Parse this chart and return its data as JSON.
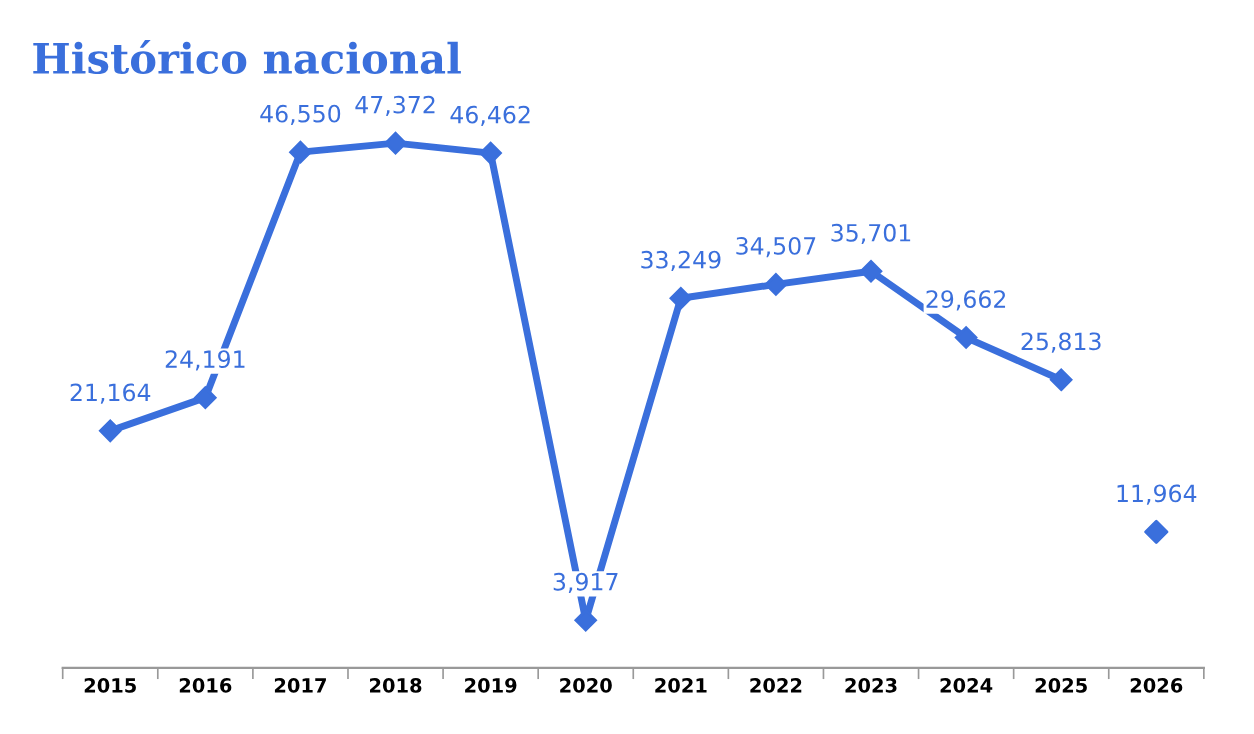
{
  "chart_data": {
    "type": "line",
    "title": "Histórico nacional",
    "categories": [
      "2015",
      "2016",
      "2017",
      "2018",
      "2019",
      "2020",
      "2021",
      "2022",
      "2023",
      "2024",
      "2025",
      "2026"
    ],
    "series": [
      {
        "color": "#3a6fdc",
        "values": [
          21164,
          24191,
          46550,
          47372,
          46462,
          3917,
          33249,
          34507,
          35701,
          29662,
          25813,
          null
        ],
        "value_labels": [
          "21,164",
          "24,191",
          "46,550",
          "47,372",
          "46,462",
          "3,917",
          "33,249",
          "34,507",
          "35,701",
          "29,662",
          "25,813",
          null
        ]
      },
      {
        "type": "scatter",
        "color": "#3a6fdc",
        "values": [
          null,
          null,
          null,
          null,
          null,
          null,
          null,
          null,
          null,
          null,
          null,
          11964
        ],
        "value_labels": [
          null,
          null,
          null,
          null,
          null,
          null,
          null,
          null,
          null,
          null,
          null,
          "11,964"
        ]
      }
    ],
    "tick_labels": "x",
    "marker": "diamond",
    "grid": false,
    "legend": false
  }
}
